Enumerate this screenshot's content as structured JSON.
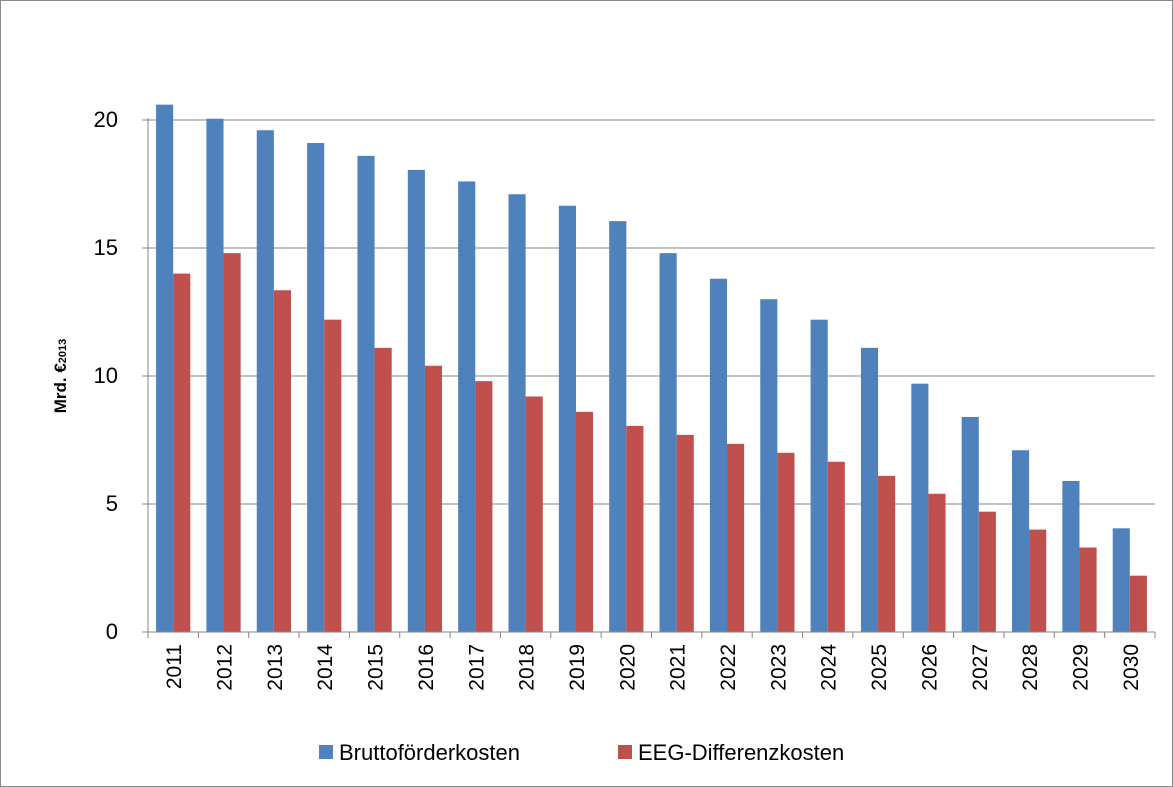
{
  "chart_data": {
    "type": "bar",
    "y_label": "Mrd. €",
    "y_label_subscript": "2013",
    "categories": [
      "2011",
      "2012",
      "2013",
      "2014",
      "2015",
      "2016",
      "2017",
      "2018",
      "2019",
      "2020",
      "2021",
      "2022",
      "2023",
      "2024",
      "2025",
      "2026",
      "2027",
      "2028",
      "2029",
      "2030"
    ],
    "series": [
      {
        "name": "Bruttoförderkosten",
        "color": "#4f81bd",
        "values": [
          20.6,
          20.05,
          19.6,
          19.1,
          18.6,
          18.05,
          17.6,
          17.1,
          16.65,
          16.05,
          14.8,
          13.8,
          13.0,
          12.2,
          11.1,
          9.7,
          8.4,
          7.1,
          5.9,
          4.05
        ]
      },
      {
        "name": "EEG-Differenzkosten",
        "color": "#c0504d",
        "values": [
          14.0,
          14.8,
          13.35,
          12.2,
          11.1,
          10.4,
          9.8,
          9.2,
          8.6,
          8.05,
          7.7,
          7.35,
          7.0,
          6.65,
          6.1,
          5.4,
          4.7,
          4.0,
          3.3,
          2.2
        ]
      }
    ],
    "ylim": [
      0,
      20
    ],
    "yticks": [
      0,
      5,
      10,
      15,
      20
    ],
    "grid": true,
    "legend": "bottom"
  }
}
